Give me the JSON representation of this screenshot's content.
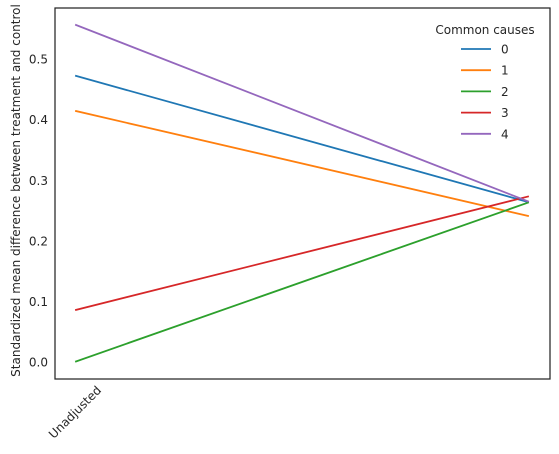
{
  "chart_data": {
    "type": "line",
    "title": "",
    "xlabel": "",
    "ylabel": "Standardized mean difference between treatment and control",
    "categories": [
      "Unadjusted",
      ""
    ],
    "ylim": [
      -0.027,
      0.585
    ],
    "yticks": [
      0.0,
      0.1,
      0.2,
      0.3,
      0.4,
      0.5
    ],
    "ytick_labels": [
      "0.0",
      "0.1",
      "0.2",
      "0.3",
      "0.4",
      "0.5"
    ],
    "grid": false,
    "legend": {
      "title": "Common causes",
      "placement": "top-right"
    },
    "series": [
      {
        "name": "0",
        "color": "#1f77b4",
        "values": [
          0.473,
          0.265
        ]
      },
      {
        "name": "1",
        "color": "#ff7f0e",
        "values": [
          0.415,
          0.242
        ]
      },
      {
        "name": "2",
        "color": "#2ca02c",
        "values": [
          0.002,
          0.264
        ]
      },
      {
        "name": "3",
        "color": "#d62728",
        "values": [
          0.087,
          0.274
        ]
      },
      {
        "name": "4",
        "color": "#9467bd",
        "values": [
          0.557,
          0.266
        ]
      }
    ]
  }
}
